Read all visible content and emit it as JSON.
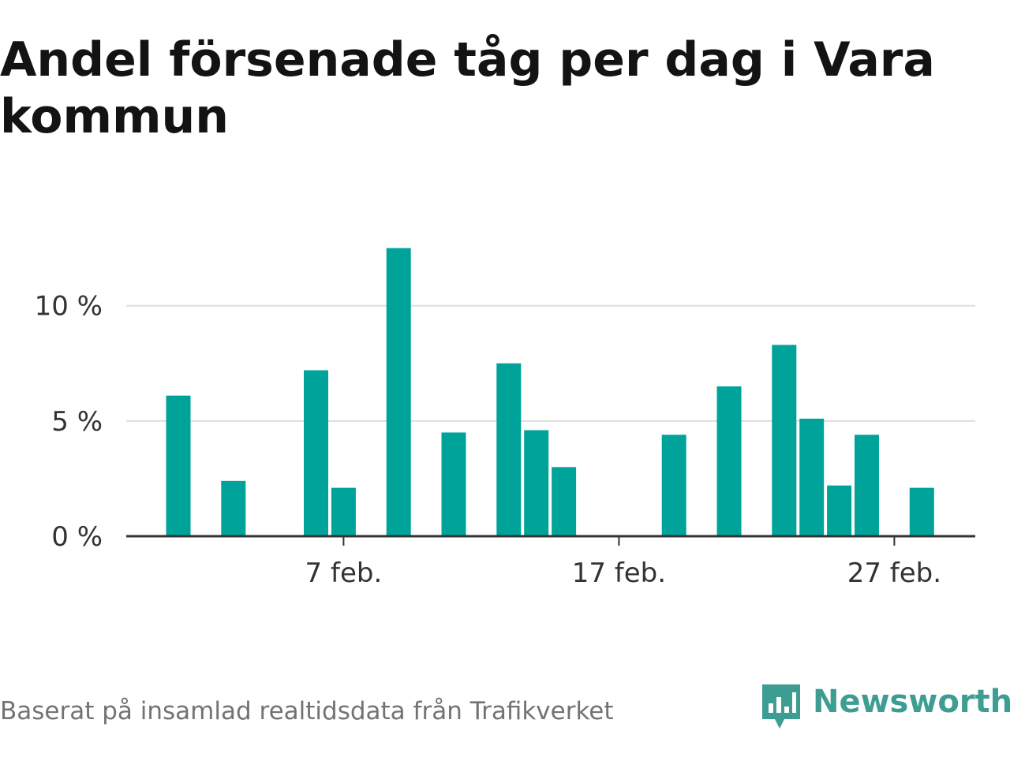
{
  "title": "Andel försenade tåg per dag i Vara kommun",
  "footer": "Baserat på insamlad realtidsdata från Trafikverket",
  "brand": {
    "name": "Newsworthy",
    "icon": "newsworthy-logo-icon",
    "color": "#3d9d93"
  },
  "colors": {
    "bar": "#00a39a",
    "grid": "#dedede",
    "axis": "#333333"
  },
  "chart_data": {
    "type": "bar",
    "x_type": "date",
    "x": [
      "2022-02-01",
      "2022-02-02",
      "2022-02-03",
      "2022-02-04",
      "2022-02-05",
      "2022-02-06",
      "2022-02-07",
      "2022-02-08",
      "2022-02-09",
      "2022-02-10",
      "2022-02-11",
      "2022-02-12",
      "2022-02-13",
      "2022-02-14",
      "2022-02-15",
      "2022-02-16",
      "2022-02-17",
      "2022-02-18",
      "2022-02-19",
      "2022-02-20",
      "2022-02-21",
      "2022-02-22",
      "2022-02-23",
      "2022-02-24",
      "2022-02-25",
      "2022-02-26",
      "2022-02-27",
      "2022-02-28"
    ],
    "values": [
      6.1,
      0,
      2.4,
      0,
      0,
      7.2,
      2.1,
      0,
      12.5,
      0,
      4.5,
      0,
      7.5,
      4.6,
      3.0,
      0,
      0,
      0,
      4.4,
      0,
      6.5,
      0,
      8.3,
      5.1,
      2.2,
      4.4,
      0,
      2.1
    ],
    "x_ticks": [
      {
        "date": "2022-02-07",
        "label": "7 feb."
      },
      {
        "date": "2022-02-17",
        "label": "17 feb."
      },
      {
        "date": "2022-02-27",
        "label": "27 feb."
      }
    ],
    "y_ticks": [
      {
        "value": 0,
        "label": "0 %"
      },
      {
        "value": 5,
        "label": "5 %"
      },
      {
        "value": 10,
        "label": "10 %"
      }
    ],
    "ylim": [
      0,
      13
    ],
    "xlabel": "",
    "ylabel": "",
    "grid": true,
    "legend": "none"
  }
}
